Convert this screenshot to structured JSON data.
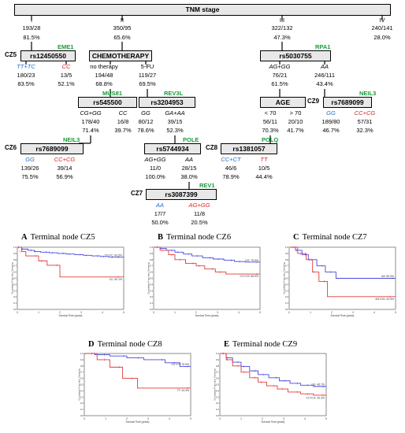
{
  "root": {
    "title": "TNM stage"
  },
  "stages": [
    {
      "label": "I",
      "counts": "193/28",
      "pct": "81.5%"
    },
    {
      "label": "II",
      "counts": "350/95",
      "pct": "65.6%"
    },
    {
      "label": "III",
      "counts": "322/132",
      "pct": "47.3%"
    },
    {
      "label": "IV",
      "counts": "240/141",
      "pct": "28.0%"
    }
  ],
  "nodes": {
    "cz5": {
      "cz": "CZ5",
      "title": "rs12450550",
      "gene": "EME1",
      "left": {
        "label": "TT+TC",
        "counts": "180/23",
        "pct": "83.5%"
      },
      "right": {
        "label": "CC",
        "counts": "13/5",
        "pct": "52.1%"
      }
    },
    "chemo": {
      "title": "CHEMOTHERAPY",
      "left": {
        "label": "no therapy",
        "counts": "194/48",
        "pct": "68.8%"
      },
      "right": {
        "label": "5-FU",
        "counts": "119/27",
        "pct": "69.5%"
      }
    },
    "rs5030755": {
      "title": "rs5030755",
      "gene": "RPA1",
      "left": {
        "label": "AG+GG",
        "counts": "76/21",
        "pct": "61.5%"
      },
      "right": {
        "label": "AA",
        "counts": "246/111",
        "pct": "43.4%"
      }
    },
    "rs545500": {
      "title": "rs545500",
      "gene": "MUS81",
      "left": {
        "label": "CG+GG",
        "counts": "178/40",
        "pct": "71.4%"
      },
      "right": {
        "label": "CC",
        "counts": "16/8",
        "pct": "39.7%"
      }
    },
    "rs3204953": {
      "title": "rs3204953",
      "gene": "REV3L",
      "left": {
        "label": "GG",
        "counts": "80/12",
        "pct": "78.6%"
      },
      "right": {
        "label": "GA+AA",
        "counts": "39/15",
        "pct": "52.3%"
      }
    },
    "age": {
      "title": "AGE",
      "left": {
        "label": "< 70",
        "counts": "56/11",
        "pct": "70.3%"
      },
      "right": {
        "label": "> 70",
        "counts": "20/10",
        "pct": "41.7%"
      }
    },
    "cz9": {
      "cz": "CZ9",
      "title": "rs7689099",
      "gene": "NEIL3",
      "left": {
        "label": "GG",
        "counts": "189/80",
        "pct": "46.7%"
      },
      "right": {
        "label": "CC+CG",
        "counts": "57/31",
        "pct": "32.3%"
      }
    },
    "cz6": {
      "cz": "CZ6",
      "title": "rs7689099",
      "gene": "NEIL3",
      "left": {
        "label": "GG",
        "counts": "139/26",
        "pct": "75.5%"
      },
      "right": {
        "label": "CC+CG",
        "counts": "39/14",
        "pct": "56.9%"
      }
    },
    "rs5744934": {
      "title": "rs5744934",
      "gene": "POLE",
      "left": {
        "label": "AG+GG",
        "counts": "11/0",
        "pct": "100.0%"
      },
      "right": {
        "label": "AA",
        "counts": "28/15",
        "pct": "38.0%"
      }
    },
    "cz8": {
      "cz": "CZ8",
      "title": "rs1381057",
      "gene": "POLQ",
      "left": {
        "label": "CC+CT",
        "counts": "46/6",
        "pct": "78.9%"
      },
      "right": {
        "label": "TT",
        "counts": "10/5",
        "pct": "44.4%"
      }
    },
    "cz7": {
      "cz": "CZ7",
      "title": "rs3087399",
      "gene": "REV1",
      "left": {
        "label": "AA",
        "counts": "17/7",
        "pct": "50.0%"
      },
      "right": {
        "label": "AG+GG",
        "counts": "11/8",
        "pct": "20.5%"
      }
    }
  },
  "colors": {
    "blue": "#1e6fc9",
    "red": "#e01e1e",
    "gene": "#1a9a3a"
  },
  "chart_data": [
    {
      "type": "line",
      "letter": "A",
      "title": "Terminal node CZ5",
      "xlabel": "Survival Time (years)",
      "ylabel": "Cumulative Proportion Surviving",
      "xlim": [
        0,
        5
      ],
      "ylim": [
        0,
        1
      ],
      "xticks": [
        0,
        1,
        2,
        3,
        4,
        5
      ],
      "yticks": [
        0,
        0.1,
        0.2,
        0.3,
        0.4,
        0.5,
        0.6,
        0.7,
        0.8,
        0.9,
        1.0
      ],
      "series": [
        {
          "name": "TT+TC: 83.5%",
          "color": "#4848e0",
          "x": [
            0,
            0.2,
            0.5,
            0.8,
            1.1,
            1.5,
            1.9,
            2.3,
            2.7,
            3.1,
            3.5,
            3.9,
            4.3,
            4.6,
            5.0
          ],
          "y": [
            1.0,
            0.97,
            0.95,
            0.93,
            0.92,
            0.91,
            0.9,
            0.89,
            0.88,
            0.87,
            0.86,
            0.85,
            0.84,
            0.84,
            0.835
          ]
        },
        {
          "name": "CC: 52.1%",
          "color": "#e03a3a",
          "x": [
            0,
            0.2,
            0.4,
            1.0,
            1.4,
            2.0,
            5.0
          ],
          "y": [
            1.0,
            0.93,
            0.86,
            0.78,
            0.71,
            0.521,
            0.521
          ]
        }
      ]
    },
    {
      "type": "line",
      "letter": "B",
      "title": "Terminal node CZ6",
      "xlabel": "Survival Time (years)",
      "ylabel": "Cumulative Proportion Surviving",
      "xlim": [
        0,
        5
      ],
      "ylim": [
        0,
        1
      ],
      "xticks": [
        0,
        1,
        2,
        3,
        4,
        5
      ],
      "yticks": [
        0,
        0.1,
        0.2,
        0.3,
        0.4,
        0.5,
        0.6,
        0.7,
        0.8,
        0.9,
        1.0
      ],
      "series": [
        {
          "name": "GG: 75.5%",
          "color": "#4848e0",
          "x": [
            0,
            0.3,
            0.6,
            1.0,
            1.4,
            1.8,
            2.3,
            2.8,
            3.3,
            3.8,
            4.3,
            5.0
          ],
          "y": [
            1.0,
            0.98,
            0.95,
            0.92,
            0.89,
            0.86,
            0.83,
            0.81,
            0.79,
            0.77,
            0.76,
            0.755
          ]
        },
        {
          "name": "CC+CG: 56.9%",
          "color": "#e03a3a",
          "x": [
            0,
            0.3,
            0.7,
            1.0,
            1.5,
            2.0,
            2.4,
            2.9,
            3.4,
            5.0
          ],
          "y": [
            1.0,
            0.95,
            0.88,
            0.8,
            0.74,
            0.7,
            0.65,
            0.6,
            0.569,
            0.569
          ]
        }
      ]
    },
    {
      "type": "line",
      "letter": "C",
      "title": "Terminal node CZ7",
      "xlabel": "Survival Time (years)",
      "ylabel": "Cumulative Proportion Surviving",
      "xlim": [
        0,
        5
      ],
      "ylim": [
        0,
        1
      ],
      "xticks": [
        0,
        1,
        2,
        3,
        4,
        5
      ],
      "yticks": [
        0,
        0.1,
        0.2,
        0.3,
        0.4,
        0.5,
        0.6,
        0.7,
        0.8,
        0.9,
        1.0
      ],
      "series": [
        {
          "name": "AA: 50.0%",
          "color": "#4848e0",
          "x": [
            0,
            0.3,
            0.6,
            0.9,
            1.3,
            1.7,
            2.2,
            5.0
          ],
          "y": [
            1.0,
            0.95,
            0.88,
            0.8,
            0.7,
            0.6,
            0.5,
            0.5
          ]
        },
        {
          "name": "AG+GG: 20.5%",
          "color": "#e03a3a",
          "x": [
            0,
            0.4,
            0.8,
            1.1,
            1.4,
            1.8,
            5.0
          ],
          "y": [
            1.0,
            0.9,
            0.8,
            0.6,
            0.45,
            0.205,
            0.205
          ]
        }
      ]
    },
    {
      "type": "line",
      "letter": "D",
      "title": "Terminal node CZ8",
      "xlabel": "Survival Time (years)",
      "ylabel": "Cumulative Proportion Surviving",
      "xlim": [
        0,
        5
      ],
      "ylim": [
        0,
        1
      ],
      "xticks": [
        0,
        1,
        2,
        3,
        4,
        5
      ],
      "yticks": [
        0,
        0.1,
        0.2,
        0.3,
        0.4,
        0.5,
        0.6,
        0.7,
        0.8,
        0.9,
        1.0
      ],
      "series": [
        {
          "name": "CC+CT: 78.9%",
          "color": "#4848e0",
          "x": [
            0,
            0.5,
            1.2,
            2.0,
            2.8,
            3.8,
            4.5,
            5.0
          ],
          "y": [
            1.0,
            0.98,
            0.96,
            0.93,
            0.9,
            0.85,
            0.79,
            0.789
          ]
        },
        {
          "name": "TT: 44.4%",
          "color": "#e03a3a",
          "x": [
            0,
            0.6,
            1.2,
            1.8,
            2.5,
            5.0
          ],
          "y": [
            1.0,
            0.9,
            0.78,
            0.6,
            0.444,
            0.444
          ]
        }
      ]
    },
    {
      "type": "line",
      "letter": "E",
      "title": "Terminal node CZ9",
      "xlabel": "Survival Time (years)",
      "ylabel": "Cumulative Proportion Surviving",
      "xlim": [
        0,
        5
      ],
      "ylim": [
        0,
        1
      ],
      "xticks": [
        0,
        1,
        2,
        3,
        4,
        5
      ],
      "yticks": [
        0,
        0.1,
        0.2,
        0.3,
        0.4,
        0.5,
        0.6,
        0.7,
        0.8,
        0.9,
        1.0
      ],
      "series": [
        {
          "name": "GG: 46.7%",
          "color": "#4848e0",
          "x": [
            0,
            0.3,
            0.6,
            1.0,
            1.4,
            1.8,
            2.3,
            2.8,
            3.3,
            3.8,
            4.4,
            5.0
          ],
          "y": [
            1.0,
            0.93,
            0.86,
            0.79,
            0.72,
            0.66,
            0.61,
            0.56,
            0.52,
            0.49,
            0.47,
            0.467
          ]
        },
        {
          "name": "CC+CG: 32.3%",
          "color": "#e03a3a",
          "x": [
            0,
            0.3,
            0.6,
            1.0,
            1.4,
            1.8,
            2.2,
            2.7,
            3.2,
            3.8,
            4.4,
            5.0
          ],
          "y": [
            1.0,
            0.9,
            0.8,
            0.7,
            0.61,
            0.54,
            0.48,
            0.43,
            0.38,
            0.35,
            0.33,
            0.323
          ]
        }
      ]
    }
  ]
}
